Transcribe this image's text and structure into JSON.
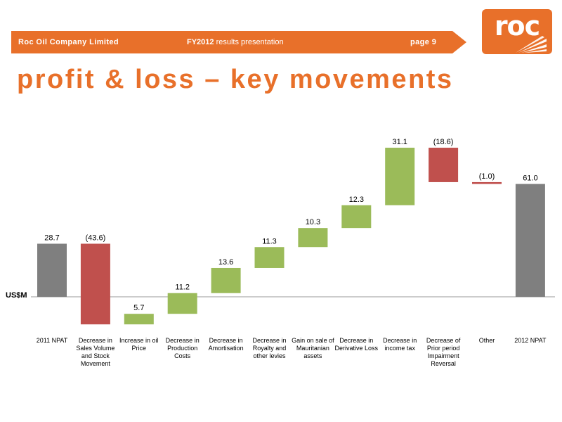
{
  "header": {
    "company": "Roc Oil Company Limited",
    "presentation_bold": "FY2012",
    "presentation_rest": " results presentation",
    "page": "page 9",
    "brand_color": "#e8702a"
  },
  "logo": {
    "word": "roc"
  },
  "title": "profit & loss – key movements",
  "chart_data": {
    "type": "waterfall",
    "ylabel": "US$M",
    "categories": [
      "2011 NPAT",
      "Decrease in Sales Volume and Stock Movement",
      "Increase in oil Price",
      "Decrease in Production Costs",
      "Decrease in Amortisation",
      "Decrease in Royalty and other levies",
      "Gain on sale of Mauritanian assets",
      "Decrease in Derivative Loss",
      "Decrease in income tax",
      "Decrease of Prior period Impairment Reversal",
      "Other",
      "2012 NPAT"
    ],
    "values": [
      28.7,
      -43.6,
      5.7,
      11.2,
      13.6,
      11.3,
      10.3,
      12.3,
      31.1,
      -18.6,
      -1.0,
      61.0
    ],
    "labels": [
      "28.7",
      "(43.6)",
      "5.7",
      "11.2",
      "13.6",
      "11.3",
      "10.3",
      "12.3",
      "31.1",
      "(18.6)",
      "(1.0)",
      "61.0"
    ],
    "kinds": [
      "total",
      "delta",
      "delta",
      "delta",
      "delta",
      "delta",
      "delta",
      "delta",
      "delta",
      "delta",
      "delta",
      "total"
    ],
    "colors": {
      "total": "#7f7f7f",
      "increase": "#9bbb59",
      "decrease": "#c0504d"
    }
  }
}
